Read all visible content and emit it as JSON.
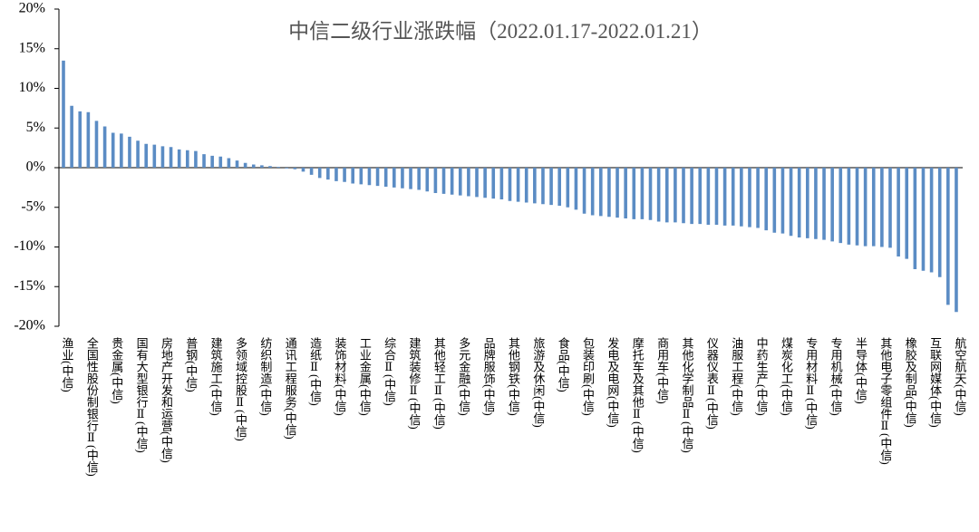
{
  "chart_data": {
    "type": "bar",
    "title": "中信二级行业涨跌幅（2022.01.17-2022.01.21）",
    "categories": [
      "渔业(中信)",
      null,
      null,
      "全国性股份制银行Ⅱ(中信)",
      null,
      null,
      "贵金属(中信)",
      null,
      null,
      "国有大型银行Ⅱ(中信)",
      null,
      null,
      "房地产开发和运营(中信)",
      null,
      null,
      "普钢(中信)",
      null,
      null,
      "建筑施工(中信)",
      null,
      null,
      "多领域控股Ⅱ(中信)",
      null,
      null,
      "纺织制造(中信)",
      null,
      null,
      "通讯工程服务(中信)",
      null,
      null,
      "造纸Ⅱ(中信)",
      null,
      null,
      "装饰材料(中信)",
      null,
      null,
      "工业金属(中信)",
      null,
      null,
      "综合Ⅱ(中信)",
      null,
      null,
      "建筑装修Ⅱ(中信)",
      null,
      null,
      "其他轻工Ⅱ(中信)",
      null,
      null,
      "多元金融(中信)",
      null,
      null,
      "品牌服饰(中信)",
      null,
      null,
      "其他钢铁(中信)",
      null,
      null,
      "旅游及休闲(中信)",
      null,
      null,
      "食品(中信)",
      null,
      null,
      "包装印刷(中信)",
      null,
      null,
      "发电及电网(中信)",
      null,
      null,
      "摩托车及其他Ⅱ(中信)",
      null,
      null,
      "商用车(中信)",
      null,
      null,
      "其他化学制品Ⅱ(中信)",
      null,
      null,
      "仪器仪表Ⅱ(中信)",
      null,
      null,
      "油服工程(中信)",
      null,
      null,
      "中药生产(中信)",
      null,
      null,
      "煤炭化工(中信)",
      null,
      null,
      "专用材料Ⅱ(中信)",
      null,
      null,
      "专用机械(中信)",
      null,
      null,
      "半导体(中信)",
      null,
      null,
      "其他电子零组件Ⅱ(中信)",
      null,
      null,
      "橡胶及制品(中信)",
      null,
      null,
      "互联网媒体(中信)",
      null,
      null,
      "航空航天(中信)"
    ],
    "values": [
      13.5,
      7.8,
      7.1,
      7.0,
      5.9,
      5.2,
      4.4,
      4.3,
      3.9,
      3.4,
      3.0,
      2.9,
      2.7,
      2.6,
      2.3,
      2.2,
      2.1,
      1.7,
      1.5,
      1.4,
      1.2,
      0.9,
      0.6,
      0.4,
      0.3,
      0.2,
      0.1,
      -0.1,
      -0.2,
      -0.5,
      -0.9,
      -1.3,
      -1.5,
      -1.7,
      -1.8,
      -2.0,
      -2.1,
      -2.2,
      -2.3,
      -2.4,
      -2.5,
      -2.6,
      -2.7,
      -2.8,
      -3.0,
      -3.2,
      -3.3,
      -3.4,
      -3.5,
      -3.6,
      -3.7,
      -3.8,
      -3.9,
      -4.0,
      -4.2,
      -4.3,
      -4.4,
      -4.5,
      -4.6,
      -4.7,
      -4.8,
      -5.0,
      -5.3,
      -5.8,
      -6.0,
      -6.1,
      -6.2,
      -6.3,
      -6.4,
      -6.5,
      -6.5,
      -6.6,
      -6.8,
      -6.9,
      -6.9,
      -7.0,
      -7.1,
      -7.1,
      -7.2,
      -7.2,
      -7.3,
      -7.3,
      -7.4,
      -7.5,
      -7.6,
      -7.9,
      -8.2,
      -8.3,
      -8.6,
      -8.8,
      -8.9,
      -9.0,
      -9.1,
      -9.3,
      -9.5,
      -9.7,
      -9.8,
      -9.9,
      -9.9,
      -10.0,
      -10.1,
      -11.2,
      -11.5,
      -12.8,
      -13.0,
      -13.2,
      -13.8,
      -17.3,
      -18.2
    ],
    "color": "#5b8cc4",
    "ylim": [
      -20,
      20
    ],
    "yticks": [
      {
        "value": 20,
        "label": "20%"
      },
      {
        "value": 15,
        "label": "15%"
      },
      {
        "value": 10,
        "label": "10%"
      },
      {
        "value": 5,
        "label": "5%"
      },
      {
        "value": 0,
        "label": "0%"
      },
      {
        "value": -5,
        "label": "-5%"
      },
      {
        "value": -10,
        "label": "-10%"
      },
      {
        "value": -15,
        "label": "-15%"
      },
      {
        "value": -20,
        "label": "-20%"
      }
    ],
    "grid": false
  }
}
